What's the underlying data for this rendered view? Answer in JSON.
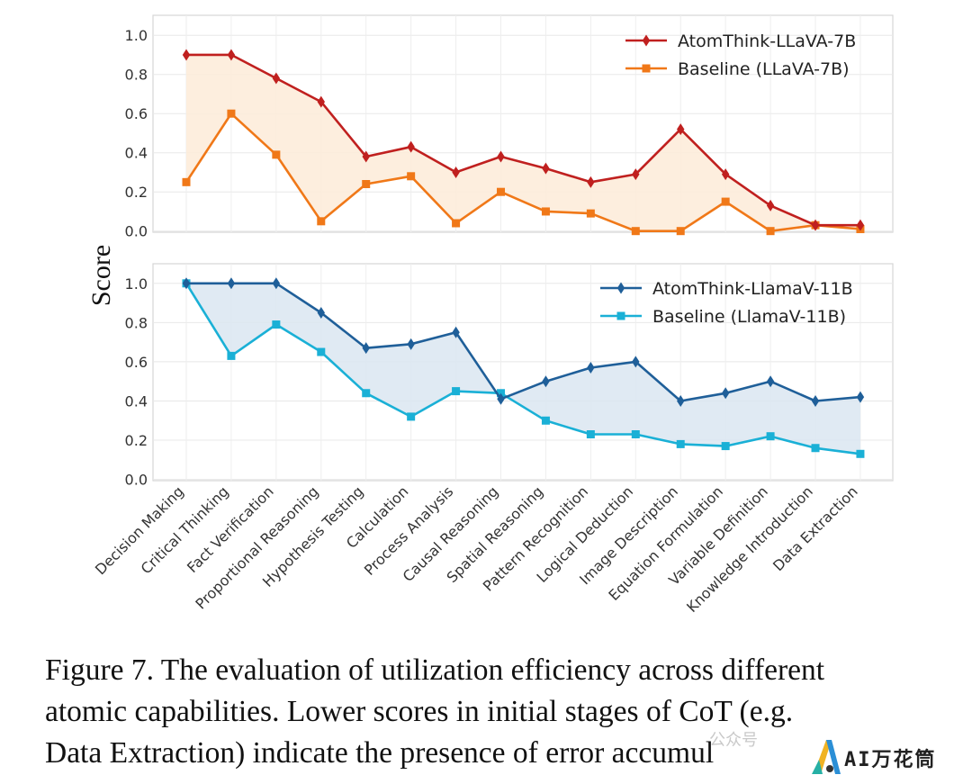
{
  "chart_data": {
    "type": "line",
    "ylabel": "Score",
    "categories": [
      "Decision Making",
      "Critical Thinking",
      "Fact Verification",
      "Proportional Reasoning",
      "Hypothesis Testing",
      "Calculation",
      "Process Analysis",
      "Causal Reasoning",
      "Spatial Reasoning",
      "Pattern Recognition",
      "Logical Deduction",
      "Image Description",
      "Equation Formulation",
      "Variable Definition",
      "Knowledge Introduction",
      "Data Extraction"
    ],
    "yticks": [
      "0.0",
      "0.2",
      "0.4",
      "0.6",
      "0.8",
      "1.0"
    ],
    "ylim": [
      0,
      1.1
    ],
    "grid": true,
    "panels": [
      {
        "legend_position": "top-right",
        "fill_color": "#fdebd8",
        "series": [
          {
            "name": "AtomThink-LLaVA-7B",
            "color": "#c0201f",
            "marker": "diamond",
            "values": [
              0.9,
              0.9,
              0.78,
              0.66,
              0.38,
              0.43,
              0.3,
              0.38,
              0.32,
              0.25,
              0.29,
              0.52,
              0.29,
              0.13,
              0.03,
              0.03
            ]
          },
          {
            "name": "Baseline (LLaVA-7B)",
            "color": "#f07818",
            "marker": "square",
            "values": [
              0.25,
              0.6,
              0.39,
              0.05,
              0.24,
              0.28,
              0.04,
              0.2,
              0.1,
              0.09,
              0.0,
              0.0,
              0.15,
              0.0,
              0.03,
              0.01
            ]
          }
        ]
      },
      {
        "legend_position": "top-right",
        "fill_color": "#dbe6f1",
        "series": [
          {
            "name": "AtomThink-LlamaV-11B",
            "color": "#1f5f99",
            "marker": "diamond",
            "values": [
              1.0,
              1.0,
              1.0,
              0.85,
              0.67,
              0.69,
              0.75,
              0.41,
              0.5,
              0.57,
              0.6,
              0.4,
              0.44,
              0.5,
              0.4,
              0.42
            ]
          },
          {
            "name": "Baseline (LlamaV-11B)",
            "color": "#1ab0d6",
            "marker": "square",
            "values": [
              1.0,
              0.63,
              0.79,
              0.65,
              0.44,
              0.32,
              0.45,
              0.44,
              0.3,
              0.23,
              0.23,
              0.18,
              0.17,
              0.22,
              0.16,
              0.13
            ]
          }
        ]
      }
    ]
  },
  "caption": {
    "line1": "Figure 7.  The evaluation of utilization efficiency across different",
    "line2": "atomic capabilities.  Lower scores in initial stages of CoT (e.g.",
    "line3": "Data Extraction) indicate the presence of error accumul"
  },
  "watermark": {
    "text": "AI万花筒",
    "ghost": "公众号"
  }
}
